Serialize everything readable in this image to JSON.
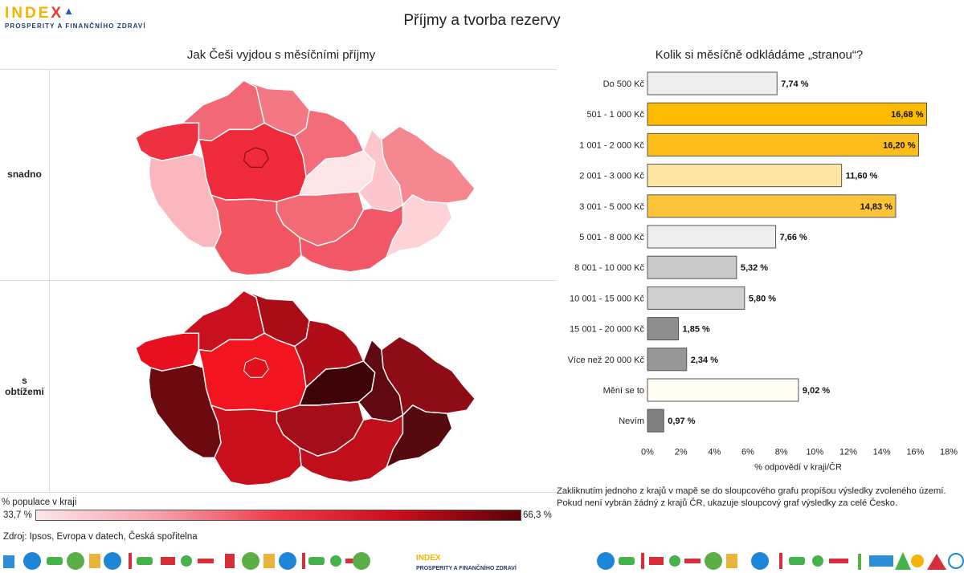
{
  "header": {
    "logo_text_a": "INDE",
    "logo_text_b": "X",
    "logo_tagline": "PROSPERITY A FINANČNÍHO ZDRAVÍ",
    "title": "Příjmy a tvorba rezervy"
  },
  "map_panel": {
    "title": "Jak Češi vyjdou s měsíčními příjmy",
    "row_top_label": "snadno",
    "row_bottom_label_1": "s",
    "row_bottom_label_2": "obtížemi",
    "legend_title": "% populace v kraji",
    "legend_min": "33,7 %",
    "legend_max": "66,3 %",
    "source": "Zdroj: Ipsos, Evropa v datech, Česká spořitelna",
    "colors": {
      "top": {
        "karlovarsky": "#ef2f42",
        "ustecky": "#f16876",
        "liberecky": "#f47784",
        "kralovehradecky": "#f36c7a",
        "stredocesky": "#ee2a3c",
        "praha": "#ee2a3c",
        "plzensky": "#fbb7be",
        "pardubicky": "#fde4e6",
        "olomoucky": "#fcc6cc",
        "moravskoslezsky": "#f58790",
        "jihocesky": "#f15662",
        "vysocina": "#f36a77",
        "jihomoravsky": "#f15766",
        "zlinsky": "#fdd3d8"
      },
      "bottom": {
        "karlovarsky": "#e8101f",
        "ustecky": "#c8101e",
        "liberecky": "#ab0d18",
        "kralovehradecky": "#b10d18",
        "stredocesky": "#f2151f",
        "praha": "#e0101c",
        "plzensky": "#6c0a10",
        "pardubicky": "#3d0306",
        "olomoucky": "#600910",
        "moravskoslezsky": "#8e0c15",
        "jihocesky": "#ca0f1c",
        "vysocina": "#a40e18",
        "jihomoravsky": "#c00f1b",
        "zlinsky": "#570910"
      }
    }
  },
  "bar_panel": {
    "title": "Kolik si měsíčně odkládáme „stranou“?",
    "note_line_1": "Zakliknutím jednoho z krajů v mapě se do sloupcového grafu propíšou výsledky zvoleného území.",
    "note_line_2": "Pokud není vybrán žádný z krajů ČR, ukazuje sloupcový graf výsledky za celé Česko."
  },
  "chart_data": {
    "type": "bar",
    "orientation": "horizontal",
    "title": "Kolik si měsíčně odkládáme „stranou“?",
    "xlabel": "% odpovědí v kraji/ČR",
    "xlim": [
      0,
      18
    ],
    "grid": false,
    "x_ticks": [
      "0%",
      "2%",
      "4%",
      "6%",
      "8%",
      "10%",
      "12%",
      "14%",
      "16%",
      "18%"
    ],
    "categories": [
      "Do 500 Kč",
      "501 - 1 000 Kč",
      "1 001 - 2 000 Kč",
      "2 001 - 3 000 Kč",
      "3 001 - 5 000 Kč",
      "5 001 - 8 000 Kč",
      "8 001 - 10 000 Kč",
      "10 001 - 15 000 Kč",
      "15 001 - 20 000 Kč",
      "Více než 20 000 Kč",
      "Mění se to",
      "Nevím"
    ],
    "values": [
      7.74,
      16.68,
      16.2,
      11.6,
      14.83,
      7.66,
      5.32,
      5.8,
      1.85,
      2.34,
      9.02,
      0.97
    ],
    "labels": [
      "7,74 %",
      "16,68 %",
      "16,20 %",
      "11,60 %",
      "14,83 %",
      "7,66 %",
      "5,32 %",
      "5,80 %",
      "1,85 %",
      "2,34 %",
      "9,02 %",
      "0,97 %"
    ],
    "colors": [
      "#eeeeee",
      "#ffbb00",
      "#fdbe1b",
      "#ffe6a3",
      "#fdc43a",
      "#eeeeee",
      "#cacaca",
      "#cfcfcf",
      "#8e8e8e",
      "#979797",
      "#fffcf2",
      "#808080"
    ]
  }
}
